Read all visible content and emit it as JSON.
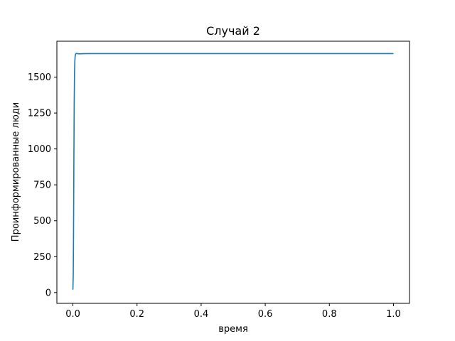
{
  "chart_data": {
    "type": "line",
    "title": "Случай 2",
    "xlabel": "время",
    "ylabel": "Проинформированные люди",
    "xlim": [
      -0.05,
      1.05
    ],
    "ylim": [
      -75,
      1750
    ],
    "xticks": [
      0.0,
      0.2,
      0.4,
      0.6,
      0.8,
      1.0
    ],
    "xtick_labels": [
      "0.0",
      "0.2",
      "0.4",
      "0.6",
      "0.8",
      "1.0"
    ],
    "yticks": [
      0,
      250,
      500,
      750,
      1000,
      1250,
      1500
    ],
    "ytick_labels": [
      "0",
      "250",
      "500",
      "750",
      "1000",
      "1250",
      "1500"
    ],
    "grid": false,
    "series": [
      {
        "color": "#1f77b4",
        "x": [
          0.0,
          0.001,
          0.002,
          0.003,
          0.004,
          0.005,
          0.006,
          0.007,
          0.008,
          0.01,
          0.012,
          0.015,
          0.02,
          0.03,
          0.05,
          0.1,
          0.2,
          0.4,
          0.6,
          0.8,
          1.0
        ],
        "y": [
          20,
          120,
          420,
          900,
          1300,
          1520,
          1610,
          1645,
          1658,
          1664,
          1665,
          1663,
          1662,
          1663,
          1664,
          1664,
          1664,
          1664,
          1664,
          1664,
          1664
        ]
      }
    ]
  }
}
